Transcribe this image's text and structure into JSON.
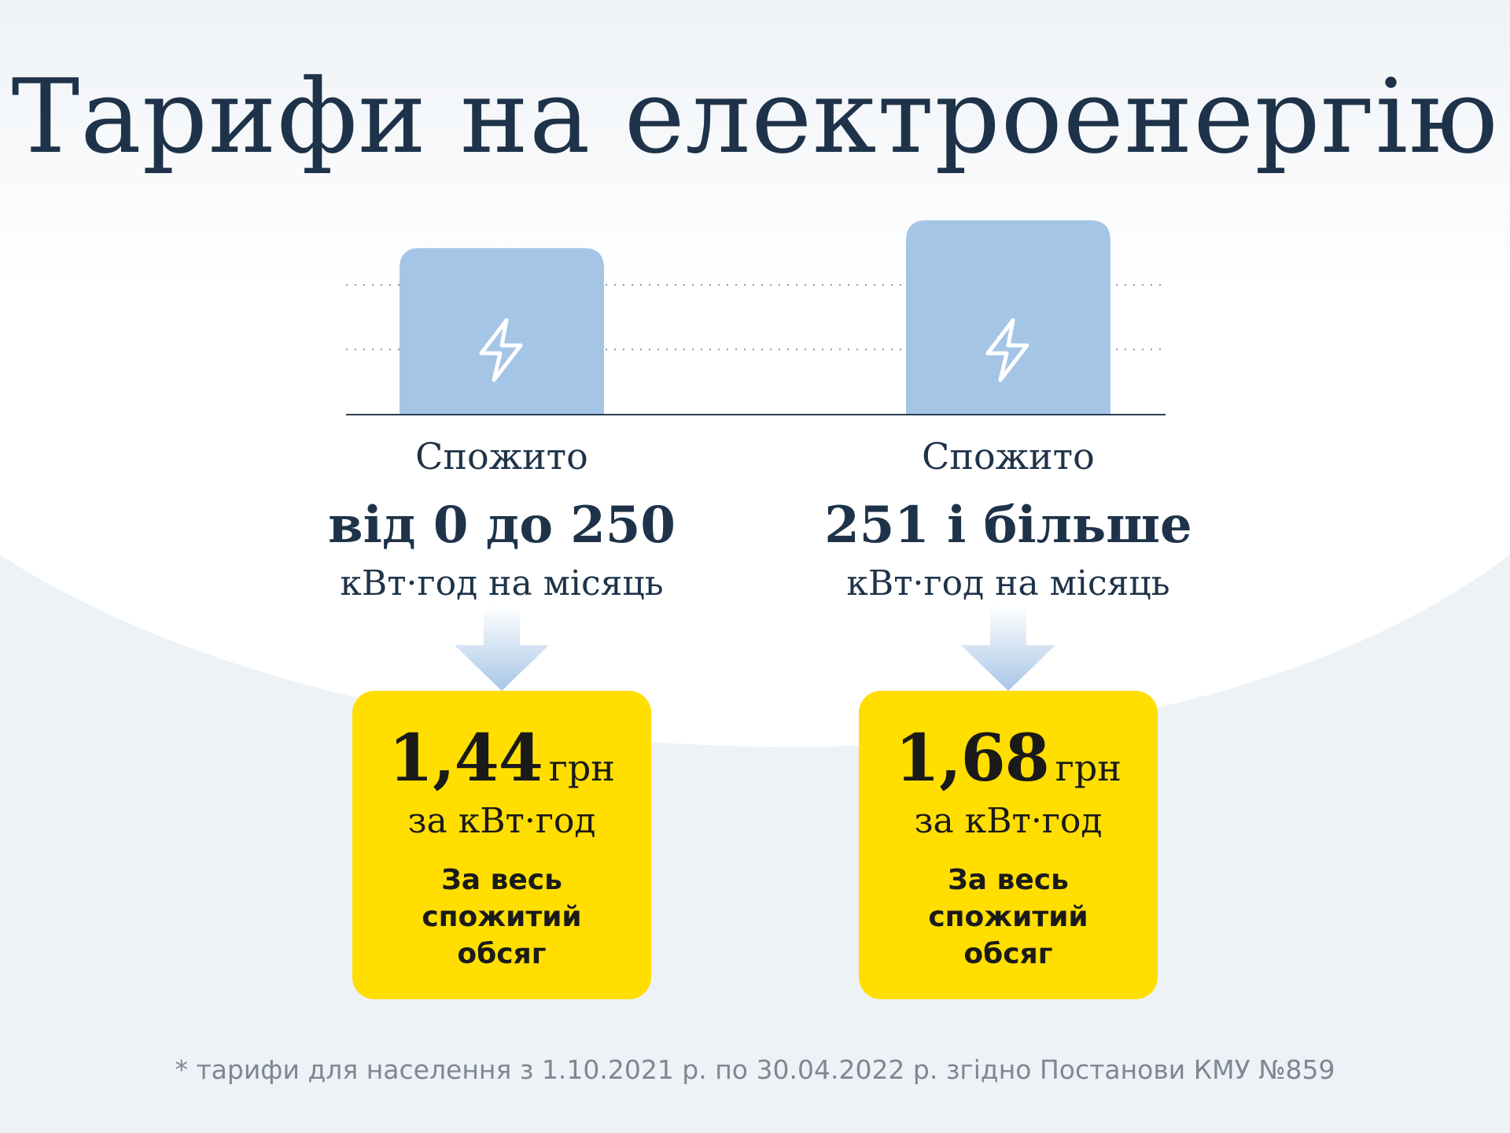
{
  "title": "Тарифи на електроенергію",
  "colors": {
    "bar": "#a4c5e6",
    "card": "#ffde00",
    "text": "#1e3349",
    "background_band": "#edf2f7"
  },
  "chart_data": {
    "type": "bar",
    "title": "Тарифи на електроенергію",
    "categories": [
      "від 0 до 250",
      "251 і більше"
    ],
    "series": [
      {
        "values": [
          1.44,
          1.68
        ]
      }
    ],
    "ylim": [
      0,
      1.68
    ],
    "grid": "dotted",
    "bar_icon": "lightning-icon"
  },
  "tiers": [
    {
      "consumed_label": "Спожито",
      "range_label": "від 0 до 250",
      "unit_label": "кВт·год на місяць",
      "price": "1,44",
      "price_unit": "грн",
      "per_unit": "за кВт·год",
      "note": "За весь спожитий обсяг"
    },
    {
      "consumed_label": "Спожито",
      "range_label": "251 і більше",
      "unit_label": "кВт·год на місяць",
      "price": "1,68",
      "price_unit": "грн",
      "per_unit": "за кВт·год",
      "note": "За весь спожитий обсяг"
    }
  ],
  "footnote": "* тарифи для населення з 1.10.2021 р. по 30.04.2022 р. згідно Постанови КМУ №859"
}
